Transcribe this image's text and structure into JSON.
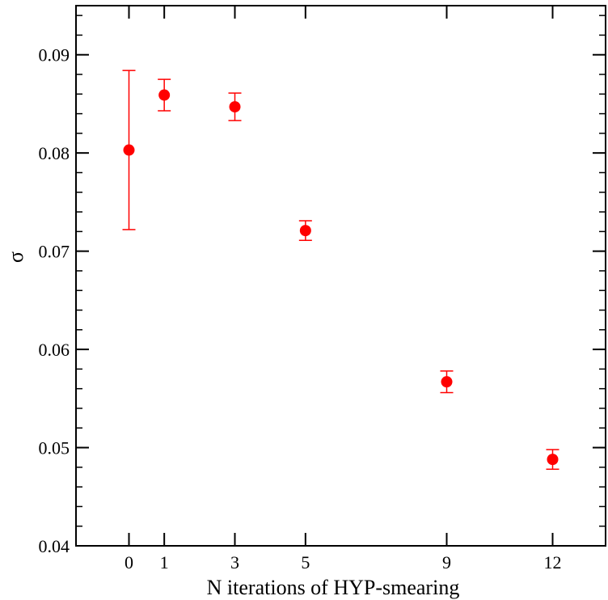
{
  "chart_data": {
    "type": "scatter",
    "title": "",
    "xlabel": "N iterations of HYP-smearing",
    "ylabel": "σ",
    "xlim": [
      -1.5,
      13.5
    ],
    "ylim": [
      0.04,
      0.095
    ],
    "x_ticks": [
      0,
      1,
      3,
      5,
      9,
      12
    ],
    "x_tick_labels": [
      "0",
      "1",
      "3",
      "5",
      "9",
      "12"
    ],
    "y_ticks": [
      0.04,
      0.05,
      0.06,
      0.07,
      0.08,
      0.09
    ],
    "y_tick_labels": [
      "0.04",
      "0.05",
      "0.06",
      "0.07",
      "0.08",
      "0.09"
    ],
    "y_minor_step": 0.002,
    "grid": false,
    "series": [
      {
        "color": "#ff0000",
        "marker": "circle",
        "points": [
          {
            "x": 0,
            "y": 0.0803,
            "err": 0.0081
          },
          {
            "x": 1,
            "y": 0.0859,
            "err": 0.0016
          },
          {
            "x": 3,
            "y": 0.0847,
            "err": 0.0014
          },
          {
            "x": 5,
            "y": 0.0721,
            "err": 0.001
          },
          {
            "x": 9,
            "y": 0.0567,
            "err": 0.0011
          },
          {
            "x": 12,
            "y": 0.0488,
            "err": 0.001
          }
        ]
      }
    ]
  }
}
